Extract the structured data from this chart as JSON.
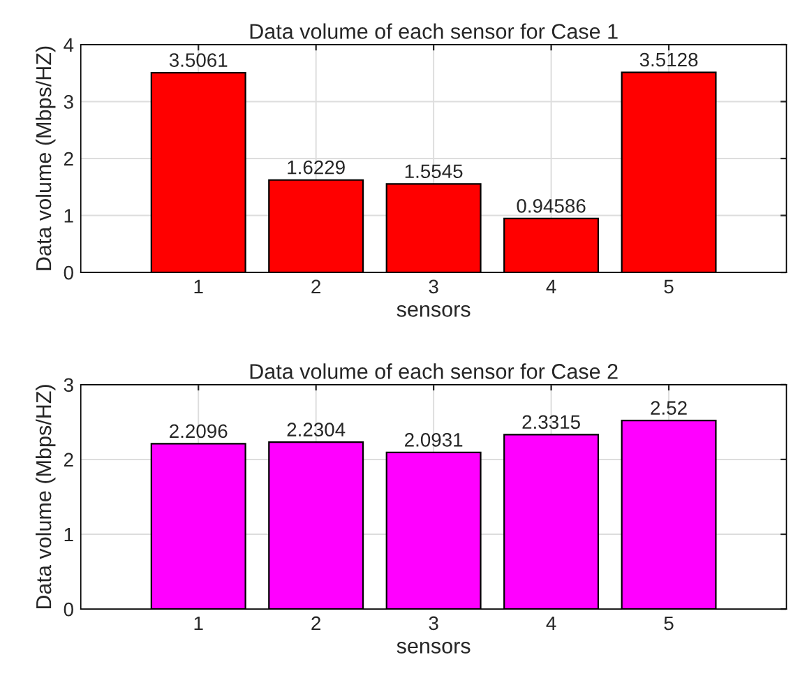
{
  "chart_data": [
    {
      "type": "bar",
      "title": "Data volume of each sensor for Case 1",
      "xlabel": "sensors",
      "ylabel": "Data volume (Mbps/HZ)",
      "x": [
        1,
        2,
        3,
        4,
        5
      ],
      "values": [
        3.5061,
        1.6229,
        1.5545,
        0.94586,
        3.5128
      ],
      "color": "#ff0000",
      "value_labels": [
        "3.5061",
        "1.6229",
        "1.5545",
        "0.94586",
        "3.5128"
      ],
      "xlim": [
        0,
        6
      ],
      "xticks": [
        1,
        2,
        3,
        4,
        5
      ],
      "ylim": [
        0,
        4
      ],
      "yticks": [
        0,
        1,
        2,
        3,
        4
      ],
      "grid": true
    },
    {
      "type": "bar",
      "title": "Data volume of each sensor for Case 2",
      "xlabel": "sensors",
      "ylabel": "Data volume (Mbps/HZ)",
      "x": [
        1,
        2,
        3,
        4,
        5
      ],
      "values": [
        2.2096,
        2.2304,
        2.0931,
        2.3315,
        2.52
      ],
      "color": "#ff00ff",
      "value_labels": [
        "2.2096",
        "2.2304",
        "2.0931",
        "2.3315",
        "2.52"
      ],
      "xlim": [
        0,
        6
      ],
      "xticks": [
        1,
        2,
        3,
        4,
        5
      ],
      "ylim": [
        0,
        3
      ],
      "yticks": [
        0,
        1,
        2,
        3
      ],
      "grid": true
    }
  ]
}
